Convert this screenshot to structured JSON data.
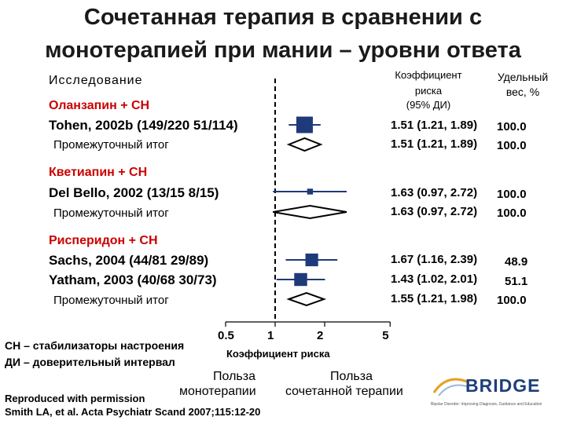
{
  "title_line1": "Сочетанная терапия в сравнении с",
  "title_line2": "монотерапией при мании – уровни ответа",
  "col_study": "Исследование",
  "col_rr_l1": "Коэффициент",
  "col_rr_l2": "риска",
  "col_rr_l3": "(95% ДИ)",
  "col_wt_l1": "Удельный",
  "col_wt_l2": "вес, %",
  "groups": [
    {
      "name": "Оланзапин + СН",
      "rows": [
        {
          "label": "Tohen, 2002b (149/220 51/114)",
          "rr": 1.51,
          "lo": 1.21,
          "hi": 1.89,
          "ci_text": "1.51 (1.21, 1.89)",
          "weight": "100.0"
        }
      ],
      "subtotal": {
        "label": "Промежуточный итог",
        "rr": 1.51,
        "lo": 1.21,
        "hi": 1.89,
        "ci_text": "1.51 (1.21, 1.89)",
        "weight": "100.0"
      }
    },
    {
      "name": "Кветиапин + СН",
      "rows": [
        {
          "label": "Del Bello, 2002 (13/15 8/15)",
          "rr": 1.63,
          "lo": 0.97,
          "hi": 2.72,
          "ci_text": "1.63 (0.97, 2.72)",
          "weight": "100.0"
        }
      ],
      "subtotal": {
        "label": "Промежуточный итог",
        "rr": 1.63,
        "lo": 0.97,
        "hi": 2.72,
        "ci_text": "1.63 (0.97, 2.72)",
        "weight": "100.0"
      }
    },
    {
      "name": "Рисперидон + СН",
      "rows": [
        {
          "label": "Sachs, 2004 (44/81 29/89)",
          "rr": 1.67,
          "lo": 1.16,
          "hi": 2.39,
          "ci_text": "1.67 (1.16, 2.39)",
          "weight": "48.9"
        },
        {
          "label": "Yatham, 2003 (40/68 30/73)",
          "rr": 1.43,
          "lo": 1.02,
          "hi": 2.01,
          "ci_text": "1.43 (1.02, 2.01)",
          "weight": "51.1"
        }
      ],
      "subtotal": {
        "label": "Промежуточный итог",
        "rr": 1.55,
        "lo": 1.21,
        "hi": 1.98,
        "ci_text": "1.55 (1.21, 1.98)",
        "weight": "100.0"
      }
    }
  ],
  "axis": {
    "ticks": [
      "0.5",
      "1",
      "2",
      "5"
    ],
    "xlabel": "Коэффициент риска",
    "left_favors_l1": "Польза",
    "left_favors_l2": "монотерапии",
    "right_favors_l1": "Польза",
    "right_favors_l2": "сочетанной терапии"
  },
  "footnotes": {
    "sn": "СН – стабилизаторы настроения",
    "di": "ДИ – доверительный интервал",
    "repro": "Reproduced with permission",
    "citation": "Smith LA, et al. Acta Psychiatr Scand 2007;115:12-20"
  },
  "logo": {
    "text": "BRIDGE",
    "tagline": "Bipolar Disorder: Improving Diagnosis, Guidance and Education"
  },
  "colors": {
    "marker": "#1f3a7a",
    "group": "#cc0000",
    "logo_accent": "#e8a020"
  },
  "chart_data": {
    "type": "forest",
    "scale": "log",
    "xlim": [
      0.5,
      5
    ],
    "xticks": [
      0.5,
      1,
      2,
      5
    ],
    "reference_line": 1,
    "xlabel": "Коэффициент риска",
    "studies": [
      {
        "group": "Оланзапин + СН",
        "label": "Tohen, 2002b (149/220 51/114)",
        "rr": 1.51,
        "lo": 1.21,
        "hi": 1.89,
        "weight": 100.0
      },
      {
        "group": "Оланзапин + СН",
        "label": "Промежуточный итог",
        "rr": 1.51,
        "lo": 1.21,
        "hi": 1.89,
        "weight": 100.0,
        "subtotal": true
      },
      {
        "group": "Кветиапин + СН",
        "label": "Del Bello, 2002 (13/15 8/15)",
        "rr": 1.63,
        "lo": 0.97,
        "hi": 2.72,
        "weight": 100.0
      },
      {
        "group": "Кветиапин + СН",
        "label": "Промежуточный итог",
        "rr": 1.63,
        "lo": 0.97,
        "hi": 2.72,
        "weight": 100.0,
        "subtotal": true
      },
      {
        "group": "Рисперидон + СН",
        "label": "Sachs, 2004 (44/81 29/89)",
        "rr": 1.67,
        "lo": 1.16,
        "hi": 2.39,
        "weight": 48.9
      },
      {
        "group": "Рисперидон + СН",
        "label": "Yatham, 2003 (40/68 30/73)",
        "rr": 1.43,
        "lo": 1.02,
        "hi": 2.01,
        "weight": 51.1
      },
      {
        "group": "Рисперидон + СН",
        "label": "Промежуточный итог",
        "rr": 1.55,
        "lo": 1.21,
        "hi": 1.98,
        "weight": 100.0,
        "subtotal": true
      }
    ]
  }
}
